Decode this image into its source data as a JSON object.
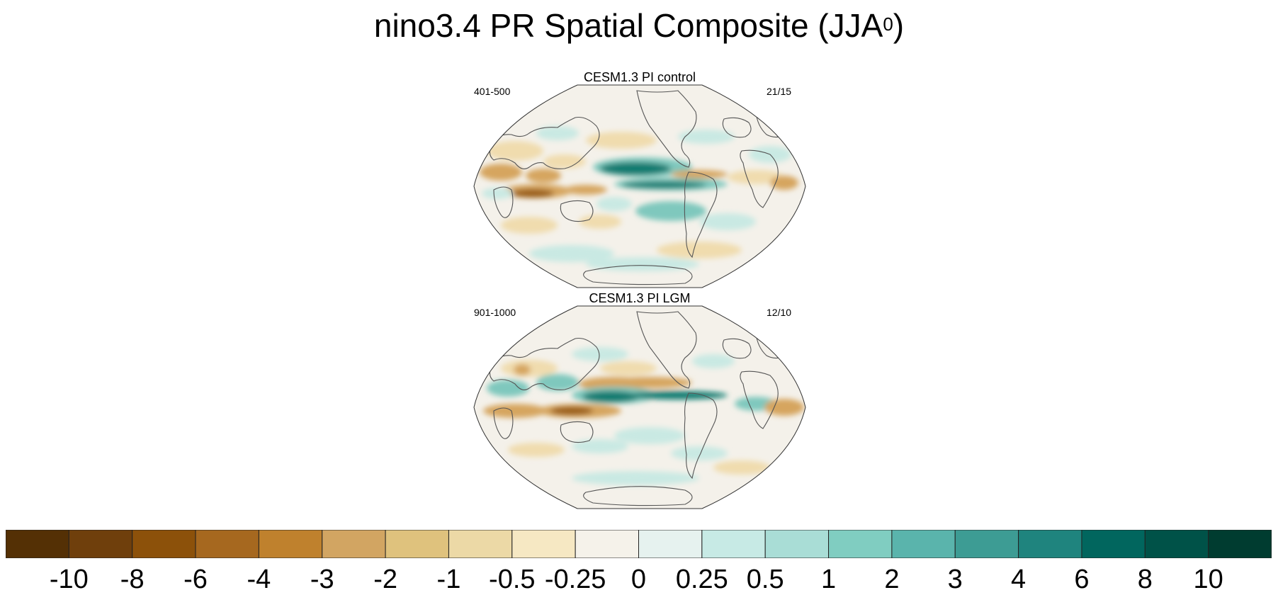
{
  "title_main": "nino3.4 PR Spatial Composite (JJA",
  "title_sup": "0",
  "title_end": ")",
  "panels": [
    {
      "title": "CESM1.3 PI control",
      "left_label": "401-500",
      "right_label": "21/15"
    },
    {
      "title": "CESM1.3 PI LGM",
      "left_label": "901-1000",
      "right_label": "12/10"
    }
  ],
  "colorbar": {
    "colors": [
      "#543005",
      "#6f3f0c",
      "#8c510a",
      "#a6681f",
      "#bf812d",
      "#d2a562",
      "#dfc27d",
      "#ecd9a6",
      "#f6e8c3",
      "#f5f2ea",
      "#e6f2ef",
      "#c7eae5",
      "#a9ddd6",
      "#80cdc1",
      "#5ab4ac",
      "#3d9c94",
      "#1f847e",
      "#01665e",
      "#005248",
      "#003c30"
    ],
    "labels": [
      "-10",
      "-8",
      "-6",
      "-4",
      "-3",
      "-2",
      "-1",
      "-0.5",
      "-0.25",
      "0",
      "0.25",
      "0.5",
      "1",
      "2",
      "3",
      "4",
      "6",
      "8",
      "10"
    ]
  },
  "map_colors": {
    "ocean_base": "#f4f1ea",
    "brown_light": "#f0dcae",
    "brown_mid": "#d6a55e",
    "brown_dark": "#9a5d16",
    "teal_light": "#c9e9e3",
    "teal_mid": "#7fc8bd",
    "teal_dark": "#117a70",
    "coast": "#555555"
  }
}
